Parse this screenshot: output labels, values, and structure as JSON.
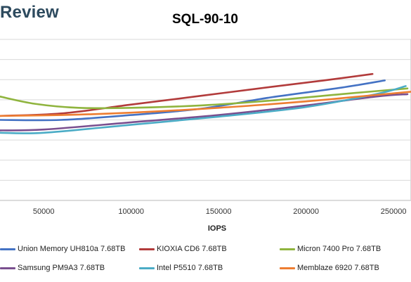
{
  "brand": {
    "text": "Review"
  },
  "chart_data": {
    "type": "line",
    "title": "SQL-90-10",
    "xlabel": "IOPS",
    "ylabel": "",
    "xlim": [
      25000,
      260000
    ],
    "ylim": [
      0,
      10
    ],
    "xticks": [
      50000,
      100000,
      150000,
      200000,
      250000
    ],
    "xtick_labels": [
      "50000",
      "100000",
      "150000",
      "200000",
      "250000"
    ],
    "grid": true,
    "legend_position": "bottom",
    "series": [
      {
        "name": "Union Memory UH810a 7.68TB",
        "color": "#4472c4",
        "x": [
          25000,
          60000,
          100000,
          140000,
          180000,
          220000,
          245000
        ],
        "y": [
          5.0,
          5.0,
          5.3,
          5.7,
          6.4,
          7.0,
          7.45
        ]
      },
      {
        "name": "KIOXIA CD6 7.68TB",
        "color": "#b23b3b",
        "x": [
          25000,
          60000,
          100000,
          140000,
          180000,
          210000,
          238000
        ],
        "y": [
          5.25,
          5.4,
          5.95,
          6.5,
          7.05,
          7.45,
          7.85
        ]
      },
      {
        "name": "Micron 7400 Pro 7.68TB",
        "color": "#8fb43e",
        "x": [
          25000,
          45000,
          70000,
          100000,
          140000,
          180000,
          220000,
          258000
        ],
        "y": [
          6.45,
          6.0,
          5.75,
          5.75,
          5.9,
          6.2,
          6.6,
          6.95
        ]
      },
      {
        "name": "Samsung PM9A3 7.68TB",
        "color": "#7a4f8f",
        "x": [
          25000,
          50000,
          100000,
          150000,
          200000,
          240000,
          258000
        ],
        "y": [
          4.35,
          4.4,
          4.85,
          5.3,
          5.9,
          6.45,
          6.6
        ]
      },
      {
        "name": "Intel P5510 7.68TB",
        "color": "#4bacc6",
        "x": [
          25000,
          50000,
          100000,
          150000,
          200000,
          240000,
          257000
        ],
        "y": [
          4.2,
          4.2,
          4.7,
          5.2,
          5.8,
          6.6,
          7.1
        ]
      },
      {
        "name": "Memblaze 6920 7.68TB",
        "color": "#ed7d31",
        "x": [
          25000,
          60000,
          100000,
          150000,
          200000,
          240000,
          260000
        ],
        "y": [
          5.25,
          5.3,
          5.45,
          5.75,
          6.15,
          6.55,
          6.75
        ]
      }
    ]
  }
}
